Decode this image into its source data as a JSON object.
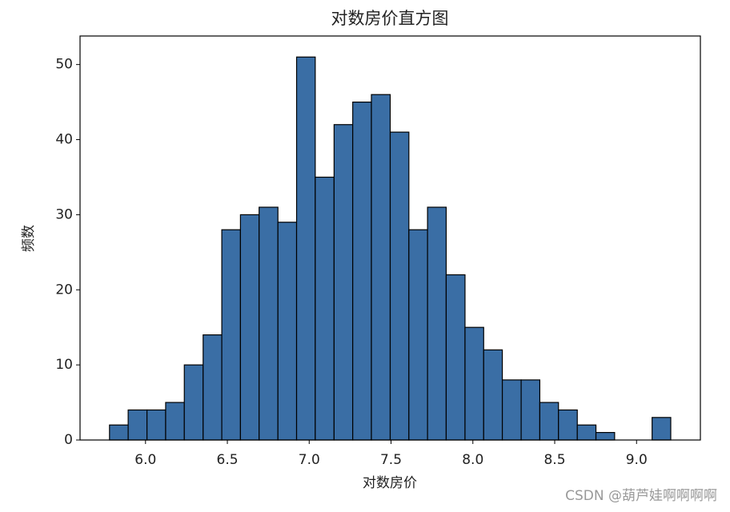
{
  "chart_data": {
    "type": "histogram",
    "title": "对数房价直方图",
    "x_label": "对数房价",
    "y_label": "频数",
    "bins": [
      5.78,
      5.894,
      6.009,
      6.123,
      6.237,
      6.352,
      6.466,
      6.58,
      6.694,
      6.809,
      6.923,
      7.037,
      7.152,
      7.266,
      7.38,
      7.495,
      7.609,
      7.723,
      7.837,
      7.952,
      8.066,
      8.18,
      8.295,
      8.409,
      8.523,
      8.638,
      8.752,
      8.866,
      8.98,
      9.095,
      9.209
    ],
    "counts": [
      2,
      4,
      4,
      5,
      10,
      14,
      28,
      30,
      31,
      29,
      51,
      35,
      42,
      45,
      46,
      41,
      28,
      31,
      22,
      15,
      12,
      8,
      8,
      5,
      4,
      2,
      1,
      0,
      0,
      3
    ],
    "color": "#3a6ea5",
    "edgecolor": "#000000",
    "xlim": [
      5.6,
      9.39
    ],
    "ylim": [
      0,
      53.8
    ],
    "xticks": [
      {
        "value": 6.0,
        "label": "6.0"
      },
      {
        "value": 6.5,
        "label": "6.5"
      },
      {
        "value": 7.0,
        "label": "7.0"
      },
      {
        "value": 7.5,
        "label": "7.5"
      },
      {
        "value": 8.0,
        "label": "8.0"
      },
      {
        "value": 8.5,
        "label": "8.5"
      },
      {
        "value": 9.0,
        "label": "9.0"
      }
    ],
    "yticks": [
      0,
      10,
      20,
      30,
      40,
      50
    ],
    "grid": false
  },
  "watermark": "CSDN @葫芦娃啊啊啊啊"
}
